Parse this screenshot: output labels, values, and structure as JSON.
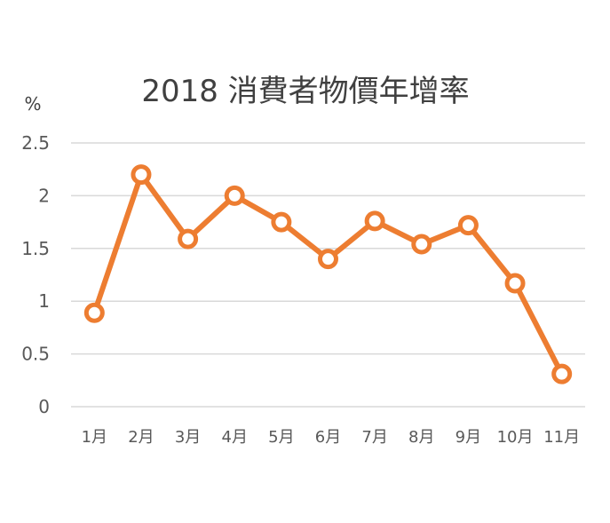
{
  "chart_data": {
    "type": "line",
    "title": "2018 消費者物價年增率",
    "ylabel": "%",
    "xlabel": "",
    "categories": [
      "1月",
      "2月",
      "3月",
      "4月",
      "5月",
      "6月",
      "7月",
      "8月",
      "9月",
      "10月",
      "11月"
    ],
    "series": [
      {
        "values": [
          0.89,
          2.2,
          1.59,
          2.0,
          1.75,
          1.4,
          1.76,
          1.54,
          1.72,
          1.17,
          0.31
        ]
      }
    ],
    "ylim": [
      0,
      2.5
    ],
    "yticks": [
      "0",
      "0.5",
      "1",
      "1.5",
      "2",
      "2.5"
    ],
    "grid": true,
    "line_color": "#ED7D31",
    "marker_fill": "#ffffff",
    "grid_color": "#D9D9D9"
  }
}
